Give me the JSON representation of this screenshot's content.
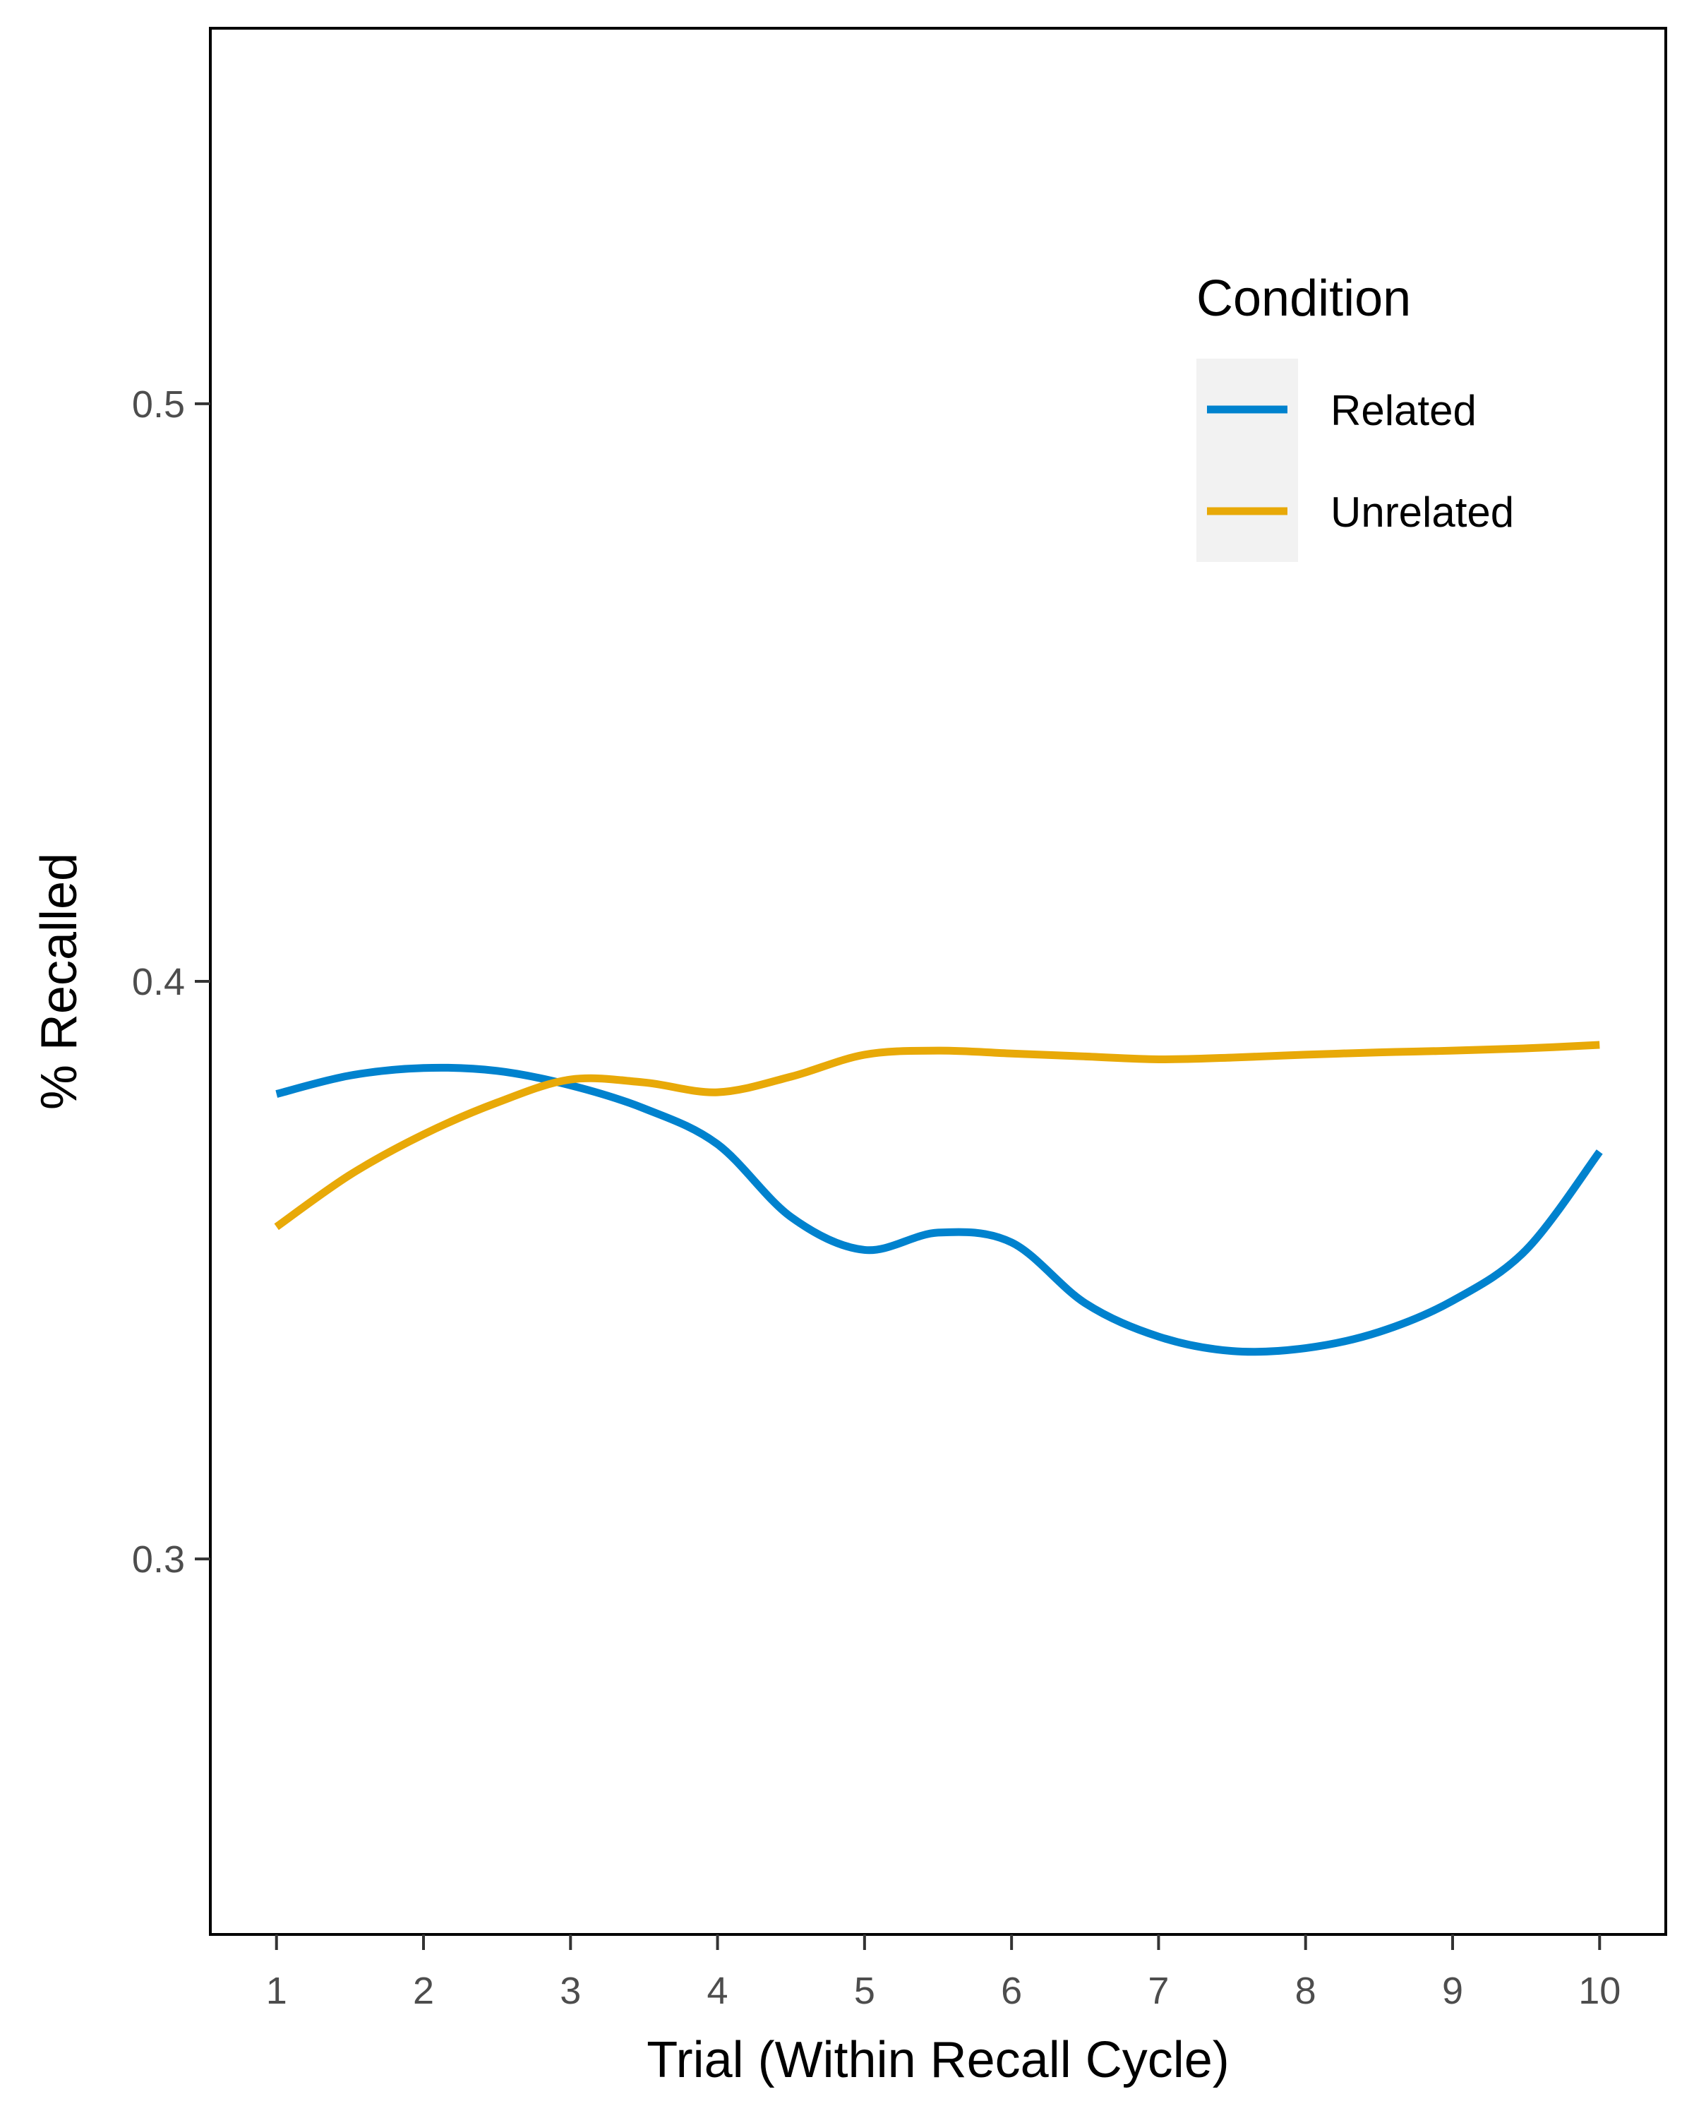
{
  "chart_data": {
    "type": "line",
    "xlabel": "Trial (Within Recall Cycle)",
    "ylabel": "% Recalled",
    "xlim": [
      0.55,
      10.45
    ],
    "ylim": [
      0.235,
      0.565
    ],
    "x_ticks": [
      1,
      2,
      3,
      4,
      5,
      6,
      7,
      8,
      9,
      10
    ],
    "x_tick_labels": [
      "1",
      "2",
      "3",
      "4",
      "5",
      "6",
      "7",
      "8",
      "9",
      "10"
    ],
    "y_ticks": [
      0.3,
      0.4,
      0.5
    ],
    "y_tick_labels": [
      "0.3",
      "0.4",
      "0.5"
    ],
    "grid": false,
    "legend": {
      "title": "Condition",
      "position": "top-right"
    },
    "series": [
      {
        "name": "Related",
        "color": "#0082CE",
        "x": [
          1,
          1.5,
          2,
          2.5,
          3,
          3.5,
          4,
          4.5,
          5,
          5.5,
          6,
          6.5,
          7,
          7.5,
          8,
          8.5,
          9,
          9.5,
          10
        ],
        "y": [
          0.3805,
          0.3837,
          0.385,
          0.3845,
          0.382,
          0.378,
          0.3718,
          0.3592,
          0.3535,
          0.3565,
          0.3548,
          0.3443,
          0.3385,
          0.336,
          0.3365,
          0.3393,
          0.3447,
          0.3535,
          0.3705
        ]
      },
      {
        "name": "Unrelated",
        "color": "#E8A908",
        "x": [
          1,
          1.5,
          2,
          2.5,
          3,
          3.5,
          4,
          4.5,
          5,
          5.5,
          6,
          6.5,
          7,
          7.5,
          8,
          8.5,
          9,
          9.5,
          10
        ],
        "y": [
          0.3575,
          0.3665,
          0.3735,
          0.379,
          0.383,
          0.3825,
          0.3808,
          0.3835,
          0.3873,
          0.388,
          0.3875,
          0.387,
          0.3865,
          0.3868,
          0.3873,
          0.3877,
          0.388,
          0.3884,
          0.389
        ]
      }
    ]
  }
}
